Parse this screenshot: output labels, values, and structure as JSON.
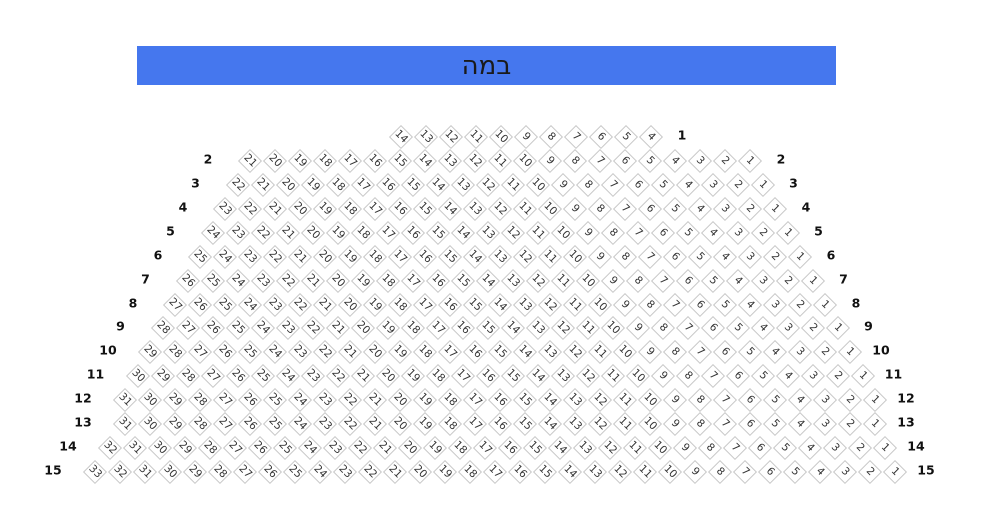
{
  "stage": {
    "label": "במה",
    "color": "#4577ee"
  },
  "rows": [
    {
      "label": "1",
      "seats": [
        14,
        13,
        12,
        11,
        10,
        9,
        8,
        7,
        6,
        5,
        4
      ]
    },
    {
      "label": "2",
      "seats_from": 21
    },
    {
      "label": "3",
      "seats_from": 22
    },
    {
      "label": "4",
      "seats_from": 23
    },
    {
      "label": "5",
      "seats_from": 24
    },
    {
      "label": "6",
      "seats_from": 25
    },
    {
      "label": "7",
      "seats_from": 26
    },
    {
      "label": "8",
      "seats_from": 27
    },
    {
      "label": "9",
      "seats_from": 28
    },
    {
      "label": "10",
      "seats_from": 29
    },
    {
      "label": "11",
      "seats_from": 30
    },
    {
      "label": "12",
      "seats_from": 31
    },
    {
      "label": "13",
      "seats_from": 31
    },
    {
      "label": "14",
      "seats_from": 32
    },
    {
      "label": "15",
      "seats_from": 33
    }
  ]
}
